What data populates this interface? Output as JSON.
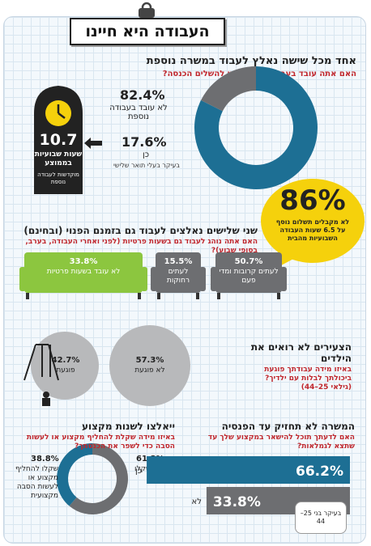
{
  "header": {
    "title": "העבודה היא חיינו"
  },
  "s1": {
    "heading": "אחד מכל שישה נאלץ לעבוד במשרה נוספת",
    "question": "האם אתה עובד בעבודה נוספת כדי להשלים הכנסה?",
    "no_pct": "82.4%",
    "no_label": "לא עובד בעבודה נוספת",
    "yes_pct": "17.6%",
    "yes_label": "כן",
    "yes_note": "בעיקר בעלי תואר שלישי",
    "clock_value": "10.7",
    "clock_text": "שעות שבועיות בממוצע",
    "clock_sub": "מוקדשות לעבודה נוספת",
    "colors": {
      "no": "#1d6f94",
      "yes": "#6d6e71"
    }
  },
  "bubble": {
    "value": "86%",
    "text": "לא מקבלים תשלום נוסף על 6.5 שעות העבודה השבועיות מהבית",
    "color": "#f5d10c"
  },
  "s2": {
    "heading": "שני שלישים נאלצים לעבוד גם בזמנם הפנוי (ובחינם)",
    "question": "האם אתה נוהג לעבוד גם בשעות פרטיות (לפני ואחרי העבודה, בערב, בסופי שבוע)?",
    "sofas": [
      {
        "pct": "50.7%",
        "label": "לעתים קרובות ומדי פעם",
        "color": "#6d6e71"
      },
      {
        "pct": "15.5%",
        "label": "לעתים רחוקות",
        "color": "#6d6e71"
      },
      {
        "pct": "33.8%",
        "label": "לא עובד בשעות פרטיות",
        "color": "#8cc63f"
      }
    ]
  },
  "s3": {
    "heading": "הצעירים לא רואים את הילדים",
    "question": "באיזו מידה עבודתך פוגעת ביכולתך לבלות עם ילדיך? (גילאי 25–44)",
    "hurts_pct": "42.7%",
    "hurts_label": "פוגעת",
    "nohurt_pct": "57.3%",
    "nohurt_label": "לא פוגעת",
    "color": "#b8b9bb"
  },
  "s4": {
    "heading": "ייאלצו לשנות מקצוע",
    "question": "באיזו מידה שקלת להחליף מקצוע או לעשות הסבה כדי לשפר את הכנסתך?",
    "not_pct": "61.2%",
    "not_label": "לא שקלו",
    "did_pct": "38.8%",
    "did_label": "שקלו להחליף מקצוע או לעשות הסבה מקצועית",
    "colors": {
      "not": "#6d6e71",
      "did": "#1d6f94"
    }
  },
  "s5": {
    "heading": "המשרה לא תחזיק עד הפנסיה",
    "question": "האם לדעתך תוכל להישאר במקצוע שלך עד שתצא לגמלאות?",
    "note": "בעיקר בני 25–44",
    "colors": {
      "yes": "#1d6f94",
      "no": "#6d6e71"
    }
  },
  "chart_data": [
    {
      "type": "pie",
      "title": "אחד מכל שישה נאלץ לעבוד במשרה נוספת",
      "labels": [
        "לא עובד בעבודה נוספת",
        "כן"
      ],
      "values": [
        82.4,
        17.6
      ]
    },
    {
      "type": "bar",
      "title": "שני שלישים נאלצים לעבוד גם בזמנם הפנוי (ובחינם)",
      "categories": [
        "לעתים קרובות ומדי פעם",
        "לעתים רחוקות",
        "לא עובד בשעות פרטיות"
      ],
      "values": [
        50.7,
        15.5,
        33.8
      ]
    },
    {
      "type": "bar",
      "title": "הצעירים לא רואים את הילדים",
      "categories": [
        "פוגעת",
        "לא פוגעת"
      ],
      "values": [
        42.7,
        57.3
      ]
    },
    {
      "type": "pie",
      "title": "ייאלצו לשנות מקצוע",
      "labels": [
        "לא שקלו",
        "שקלו להחליף מקצוע או לעשות הסבה מקצועית"
      ],
      "values": [
        61.2,
        38.8
      ]
    },
    {
      "type": "bar",
      "title": "המשרה לא תחזיק עד הפנסיה",
      "categories": [
        "כן",
        "לא"
      ],
      "values": [
        66.2,
        33.8
      ]
    }
  ]
}
